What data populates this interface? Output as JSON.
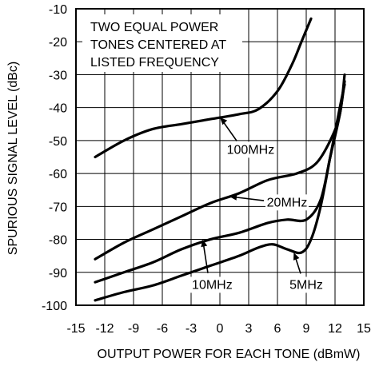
{
  "chart_data": {
    "type": "line",
    "xlabel": "OUTPUT POWER FOR EACH TONE (dBmW)",
    "ylabel": "SPURIOUS SIGNAL LEVEL (dBc)",
    "xlim": [
      -15,
      15
    ],
    "ylim": [
      -100,
      -10
    ],
    "x_ticks": [
      -15,
      -12,
      -9,
      -6,
      -3,
      0,
      3,
      6,
      9,
      12,
      15
    ],
    "y_ticks": [
      -10,
      -20,
      -30,
      -40,
      -50,
      -60,
      -70,
      -80,
      -90,
      -100
    ],
    "x_tick_labels": [
      "-15",
      "-12",
      "-9",
      "-6",
      "-3",
      "0",
      "3",
      "6",
      "9",
      "12",
      "15"
    ],
    "y_tick_labels": [
      "-10",
      "-20",
      "-30",
      "-40",
      "-50",
      "-60",
      "-70",
      "-80",
      "-90",
      "-100"
    ],
    "grid": true,
    "note_lines": [
      "TWO EQUAL POWER",
      "TONES CENTERED AT",
      "LISTED FREQUENCY"
    ],
    "series": [
      {
        "name": "100MHz",
        "points": [
          [
            -13,
            -55
          ],
          [
            -10,
            -50
          ],
          [
            -7,
            -46.5
          ],
          [
            -4,
            -45
          ],
          [
            -1,
            -43.5
          ],
          [
            2,
            -42
          ],
          [
            4,
            -40.5
          ],
          [
            6,
            -35
          ],
          [
            7.5,
            -27
          ],
          [
            8.5,
            -20
          ],
          [
            9.5,
            -13
          ]
        ]
      },
      {
        "name": "20MHz",
        "points": [
          [
            -13,
            -86
          ],
          [
            -10,
            -81
          ],
          [
            -7,
            -77
          ],
          [
            -4,
            -73
          ],
          [
            -1,
            -69
          ],
          [
            2,
            -66
          ],
          [
            5,
            -62
          ],
          [
            8,
            -60
          ],
          [
            10,
            -57
          ],
          [
            11.5,
            -50
          ],
          [
            12.5,
            -42
          ],
          [
            13,
            -30
          ]
        ]
      },
      {
        "name": "10MHz",
        "points": [
          [
            -13,
            -93
          ],
          [
            -10,
            -90
          ],
          [
            -7,
            -87
          ],
          [
            -4,
            -83
          ],
          [
            -1,
            -80
          ],
          [
            2,
            -78
          ],
          [
            5,
            -75
          ],
          [
            7,
            -74
          ],
          [
            9,
            -74
          ],
          [
            10.5,
            -68
          ],
          [
            11.5,
            -55
          ],
          [
            12.5,
            -42
          ],
          [
            13,
            -32
          ]
        ]
      },
      {
        "name": "5MHz",
        "points": [
          [
            -13,
            -98.5
          ],
          [
            -10,
            -96
          ],
          [
            -7,
            -94
          ],
          [
            -4,
            -91
          ],
          [
            -1,
            -88
          ],
          [
            2,
            -85
          ],
          [
            4,
            -82.5
          ],
          [
            5.5,
            -81.5
          ],
          [
            7,
            -83
          ],
          [
            8.5,
            -84
          ],
          [
            9.5,
            -80
          ],
          [
            10.5,
            -70
          ],
          [
            11.5,
            -55
          ],
          [
            12.5,
            -40
          ],
          [
            13,
            -33
          ]
        ]
      }
    ],
    "annotations": [
      {
        "text": "100MHz",
        "x": 3.2,
        "y": -54,
        "arrow_to": [
          0,
          -43
        ]
      },
      {
        "text": "20MHz",
        "x": 7,
        "y": -70,
        "arrow_to": [
          1,
          -67
        ]
      },
      {
        "text": "10MHz",
        "x": -0.8,
        "y": -95,
        "arrow_to": [
          -1.8,
          -80
        ]
      },
      {
        "text": "5MHz",
        "x": 9,
        "y": -95,
        "arrow_to": [
          7.7,
          -84
        ]
      }
    ]
  }
}
